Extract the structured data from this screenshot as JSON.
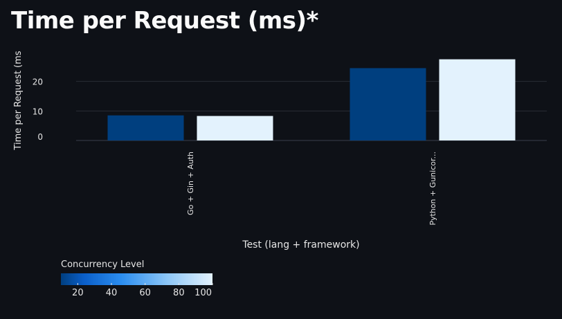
{
  "chart_data": {
    "type": "bar",
    "title": "Time per Request (ms)*",
    "xlabel": "Test (lang + framework)",
    "ylabel": "Time per Request (ms",
    "categories": [
      "Go + Gin + Auth",
      "Python + Gunicor..."
    ],
    "series": [
      {
        "concurrency": 10,
        "values": [
          8.5,
          24.5
        ]
      },
      {
        "concurrency": 100,
        "values": [
          8.3,
          27.5
        ]
      }
    ],
    "ylim": [
      0,
      30
    ],
    "yticks": [
      0,
      10,
      20
    ],
    "grid": true,
    "legend": {
      "title": "Concurrency Level",
      "type": "colorbar",
      "ticks": [
        20,
        40,
        60,
        80,
        100
      ],
      "range": [
        10,
        100
      ],
      "placement": "bottom-left"
    },
    "colors": {
      "low": "#003f7f",
      "mid": "#1f7ee8",
      "high": "#e3f2fd"
    }
  }
}
